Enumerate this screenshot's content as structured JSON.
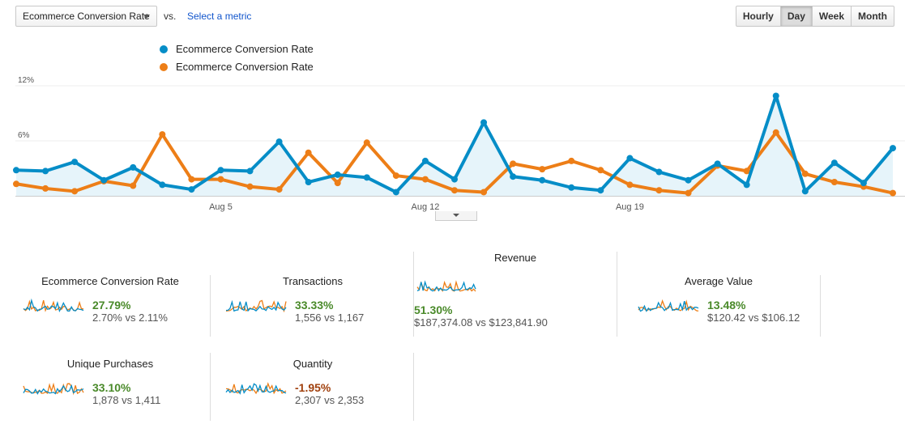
{
  "toolbar": {
    "metric_label": "Ecommerce Conversion Rate",
    "vs_label": "vs.",
    "select_metric_label": "Select a metric",
    "granularity": [
      "Hourly",
      "Day",
      "Week",
      "Month"
    ],
    "active_granularity": "Day"
  },
  "legend": [
    {
      "label": "Ecommerce Conversion Rate",
      "color": "#058dc7"
    },
    {
      "label": "Ecommerce Conversion Rate",
      "color": "#ed7e17"
    }
  ],
  "chart_data": {
    "type": "line",
    "y_ticks": [
      "12%",
      "6%"
    ],
    "ylim": [
      0,
      12
    ],
    "x_ticks": [
      {
        "label": "Aug 5",
        "index": 7
      },
      {
        "label": "Aug 12",
        "index": 14
      },
      {
        "label": "Aug 19",
        "index": 21
      }
    ],
    "series": [
      {
        "name": "Ecommerce Conversion Rate",
        "color": "#058dc7",
        "values": [
          2.8,
          2.7,
          3.7,
          1.7,
          3.1,
          1.2,
          0.7,
          2.8,
          2.7,
          5.9,
          1.5,
          2.3,
          2.0,
          0.4,
          3.8,
          1.8,
          8.0,
          2.1,
          1.7,
          0.9,
          0.6,
          4.1,
          2.6,
          1.7,
          3.5,
          1.2,
          10.9,
          0.5,
          3.6,
          1.4,
          5.2
        ]
      },
      {
        "name": "Ecommerce Conversion Rate",
        "color": "#ed7e17",
        "values": [
          1.3,
          0.8,
          0.5,
          1.6,
          1.1,
          6.7,
          1.8,
          1.8,
          1.0,
          0.7,
          4.7,
          1.4,
          5.8,
          2.2,
          1.8,
          0.6,
          0.4,
          3.5,
          2.9,
          3.8,
          2.8,
          1.2,
          0.6,
          0.3,
          3.3,
          2.7,
          6.9,
          2.4,
          1.5,
          1.0,
          0.3
        ]
      }
    ]
  },
  "scorecards": [
    {
      "title": "Ecommerce Conversion Rate",
      "pct": "27.79%",
      "cmp": "2.70% vs 2.11%",
      "dir": "up"
    },
    {
      "title": "Transactions",
      "pct": "33.33%",
      "cmp": "1,556 vs 1,167",
      "dir": "up"
    },
    {
      "title": "Revenue",
      "pct": "51.30%",
      "cmp": "$187,374.08 vs $123,841.90",
      "dir": "up"
    },
    {
      "title": "Average Value",
      "pct": "13.48%",
      "cmp": "$120.42 vs $106.12",
      "dir": "up"
    },
    {
      "title": "Unique Purchases",
      "pct": "33.10%",
      "cmp": "1,878 vs 1,411",
      "dir": "up"
    },
    {
      "title": "Quantity",
      "pct": "-1.95%",
      "cmp": "2,307 vs 2,353",
      "dir": "down"
    }
  ]
}
